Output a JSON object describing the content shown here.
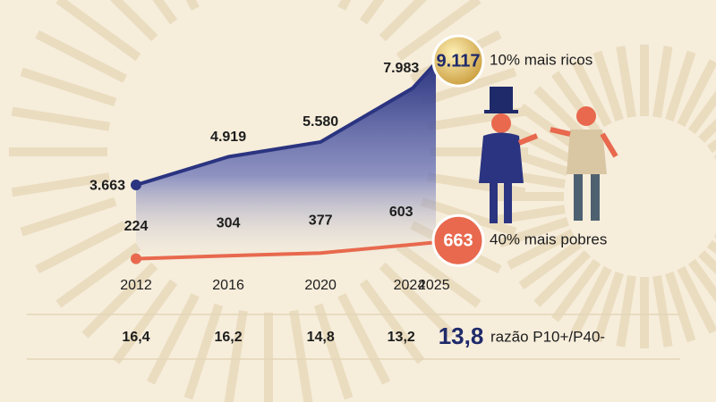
{
  "chart_data": {
    "type": "line",
    "x": [
      2012,
      2016,
      2020,
      2024,
      2025
    ],
    "xlim": [
      2012,
      2025
    ],
    "xticks": [
      2012,
      2016,
      2020,
      2024,
      2025
    ],
    "ylim": [
      0,
      10000
    ],
    "y2lim": [
      0,
      6000
    ],
    "series": [
      {
        "name": "10% mais ricos",
        "color": "#2b3480",
        "values": [
          3663,
          4919,
          5580,
          7983,
          9117
        ],
        "value_labels": [
          "3.663",
          "4.919",
          "5.580",
          "7.983",
          "9.117"
        ]
      },
      {
        "name": "40% mais pobres",
        "color": "#e8694e",
        "axis": "y2",
        "values": [
          224,
          304,
          377,
          603,
          663
        ]
      }
    ],
    "ratio": {
      "label": "razão P10+/P40-",
      "values": [
        16.4,
        16.2,
        14.8,
        13.2,
        13.8
      ],
      "value_labels": [
        "16,4",
        "16,2",
        "14,8",
        "13,2",
        "13,8"
      ]
    }
  }
}
